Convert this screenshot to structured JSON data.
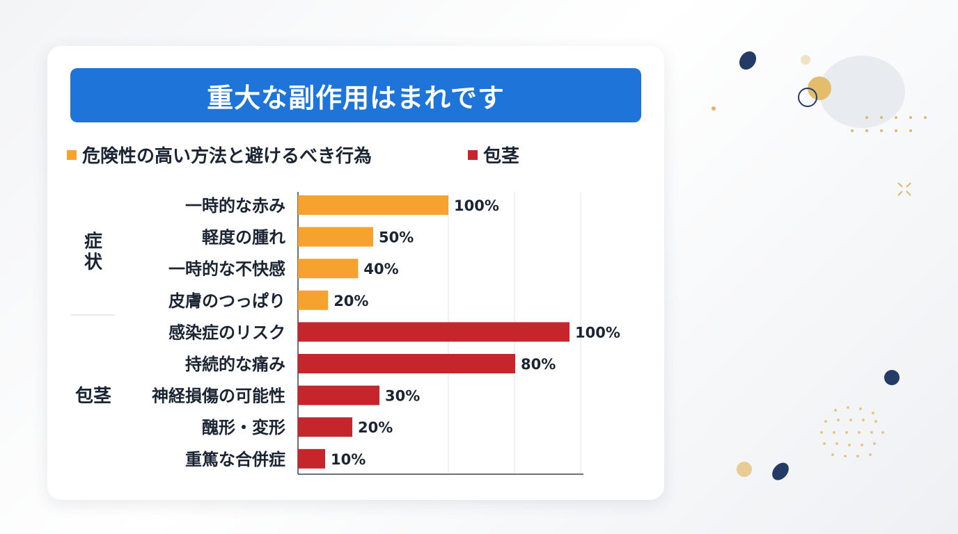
{
  "colors": {
    "title_bg": "#1e74d8",
    "symptoms": "#f5a22f",
    "phimosis": "#c4262c",
    "text": "#1a2433"
  },
  "chart_data": {
    "type": "bar",
    "orientation": "horizontal",
    "title": "重大な副作用はまれです",
    "xlim": [
      0,
      200
    ],
    "grid": true,
    "legend_placement": "top",
    "legend": [
      {
        "label": "危険性の高い方法と避けるべき行為",
        "color_key": "symptoms"
      },
      {
        "label": "包茎",
        "color_key": "phimosis"
      }
    ],
    "groups": [
      {
        "label": "症状",
        "color_key": "symptoms",
        "categories": [
          "一時的な赤み",
          "軽度の腫れ",
          "一時的な不快感",
          "皮膚のつっぱり"
        ],
        "values": [
          100,
          50,
          40,
          20
        ],
        "value_labels": [
          "100%",
          "50%",
          "40%",
          "20%"
        ]
      },
      {
        "label": "包茎",
        "color_key": "phimosis",
        "categories": [
          "感染症のリスク",
          "持続的な痛み",
          "神経損傷の可能性",
          "醜形・変形",
          "重篤な合併症"
        ],
        "values": [
          100,
          80,
          30,
          20,
          10
        ],
        "value_labels": [
          "100%",
          "80%",
          "30%",
          "20%",
          "10%"
        ]
      }
    ]
  }
}
